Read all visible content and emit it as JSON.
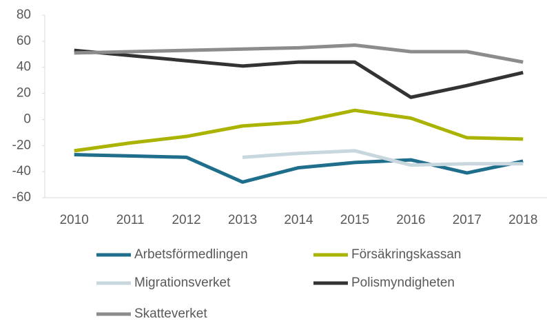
{
  "chart_data": {
    "type": "line",
    "categories": [
      "2010",
      "2011",
      "2012",
      "2013",
      "2014",
      "2015",
      "2016",
      "2017",
      "2018"
    ],
    "series": [
      {
        "name": "Arbetsförmedlingen",
        "color": "#1f6e8c",
        "values": [
          -27,
          -28,
          -29,
          -48,
          -37,
          -33,
          -31,
          -41,
          -32
        ]
      },
      {
        "name": "Försäkringskassan",
        "color": "#a9b300",
        "values": [
          -24,
          -18,
          -13,
          -5,
          -2,
          7,
          1,
          -14,
          -15
        ]
      },
      {
        "name": "Migrationsverket",
        "color": "#c8d7de",
        "values": [
          null,
          null,
          null,
          -29,
          -26,
          -24,
          -35,
          -34,
          -34
        ]
      },
      {
        "name": "Polismyndigheten",
        "color": "#333333",
        "values": [
          53,
          49,
          45,
          41,
          44,
          44,
          17,
          26,
          36
        ]
      },
      {
        "name": "Skatteverket",
        "color": "#8c8c8c",
        "values": [
          51,
          52,
          53,
          54,
          55,
          57,
          52,
          52,
          44
        ]
      }
    ],
    "ylim": [
      -60,
      80
    ],
    "yticks": [
      -60,
      -40,
      -20,
      0,
      20,
      40,
      60,
      80
    ],
    "grid": false,
    "legend": "bottom"
  }
}
